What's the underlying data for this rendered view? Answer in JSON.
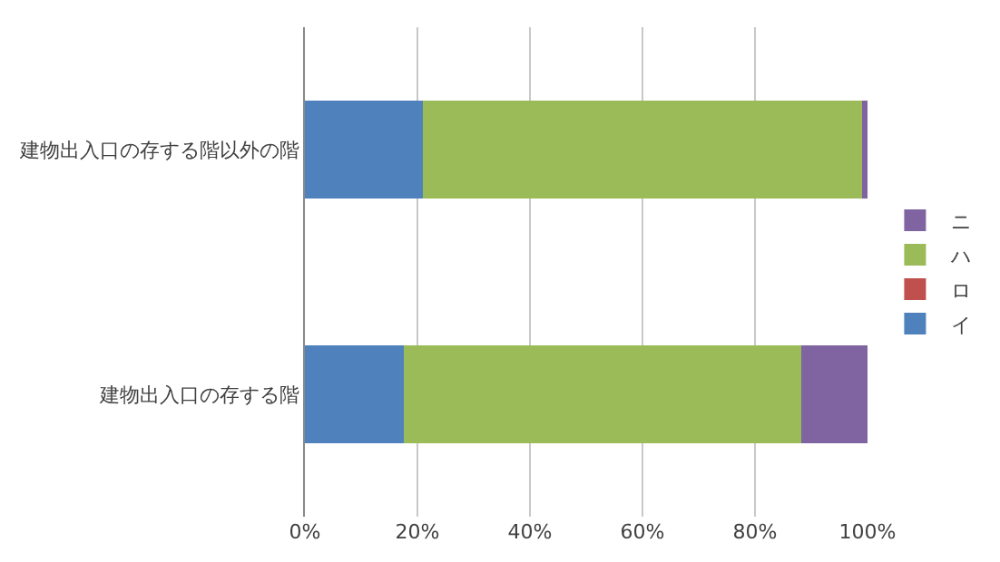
{
  "chart_data": {
    "type": "bar",
    "orientation": "horizontal",
    "stacked": true,
    "categories": [
      "建物出入口の存する階以外の階",
      "建物出入口の存する階"
    ],
    "series": [
      {
        "name": "イ",
        "color": "#4f81bd",
        "values": [
          21,
          17.5
        ]
      },
      {
        "name": "ロ",
        "color": "#c0504d",
        "values": [
          0,
          0
        ]
      },
      {
        "name": "ハ",
        "color": "#9bbb59",
        "values": [
          78,
          70.8
        ]
      },
      {
        "name": "ニ",
        "color": "#8064a2",
        "values": [
          1,
          11.7
        ]
      }
    ],
    "xlim": [
      0,
      100
    ],
    "xticks": [
      {
        "value": 0,
        "label": "0%"
      },
      {
        "value": 20,
        "label": "20%"
      },
      {
        "value": 40,
        "label": "40%"
      },
      {
        "value": 60,
        "label": "60%"
      },
      {
        "value": 80,
        "label": "80%"
      },
      {
        "value": 100,
        "label": "100%"
      }
    ],
    "grid": "x",
    "legend": "right"
  }
}
